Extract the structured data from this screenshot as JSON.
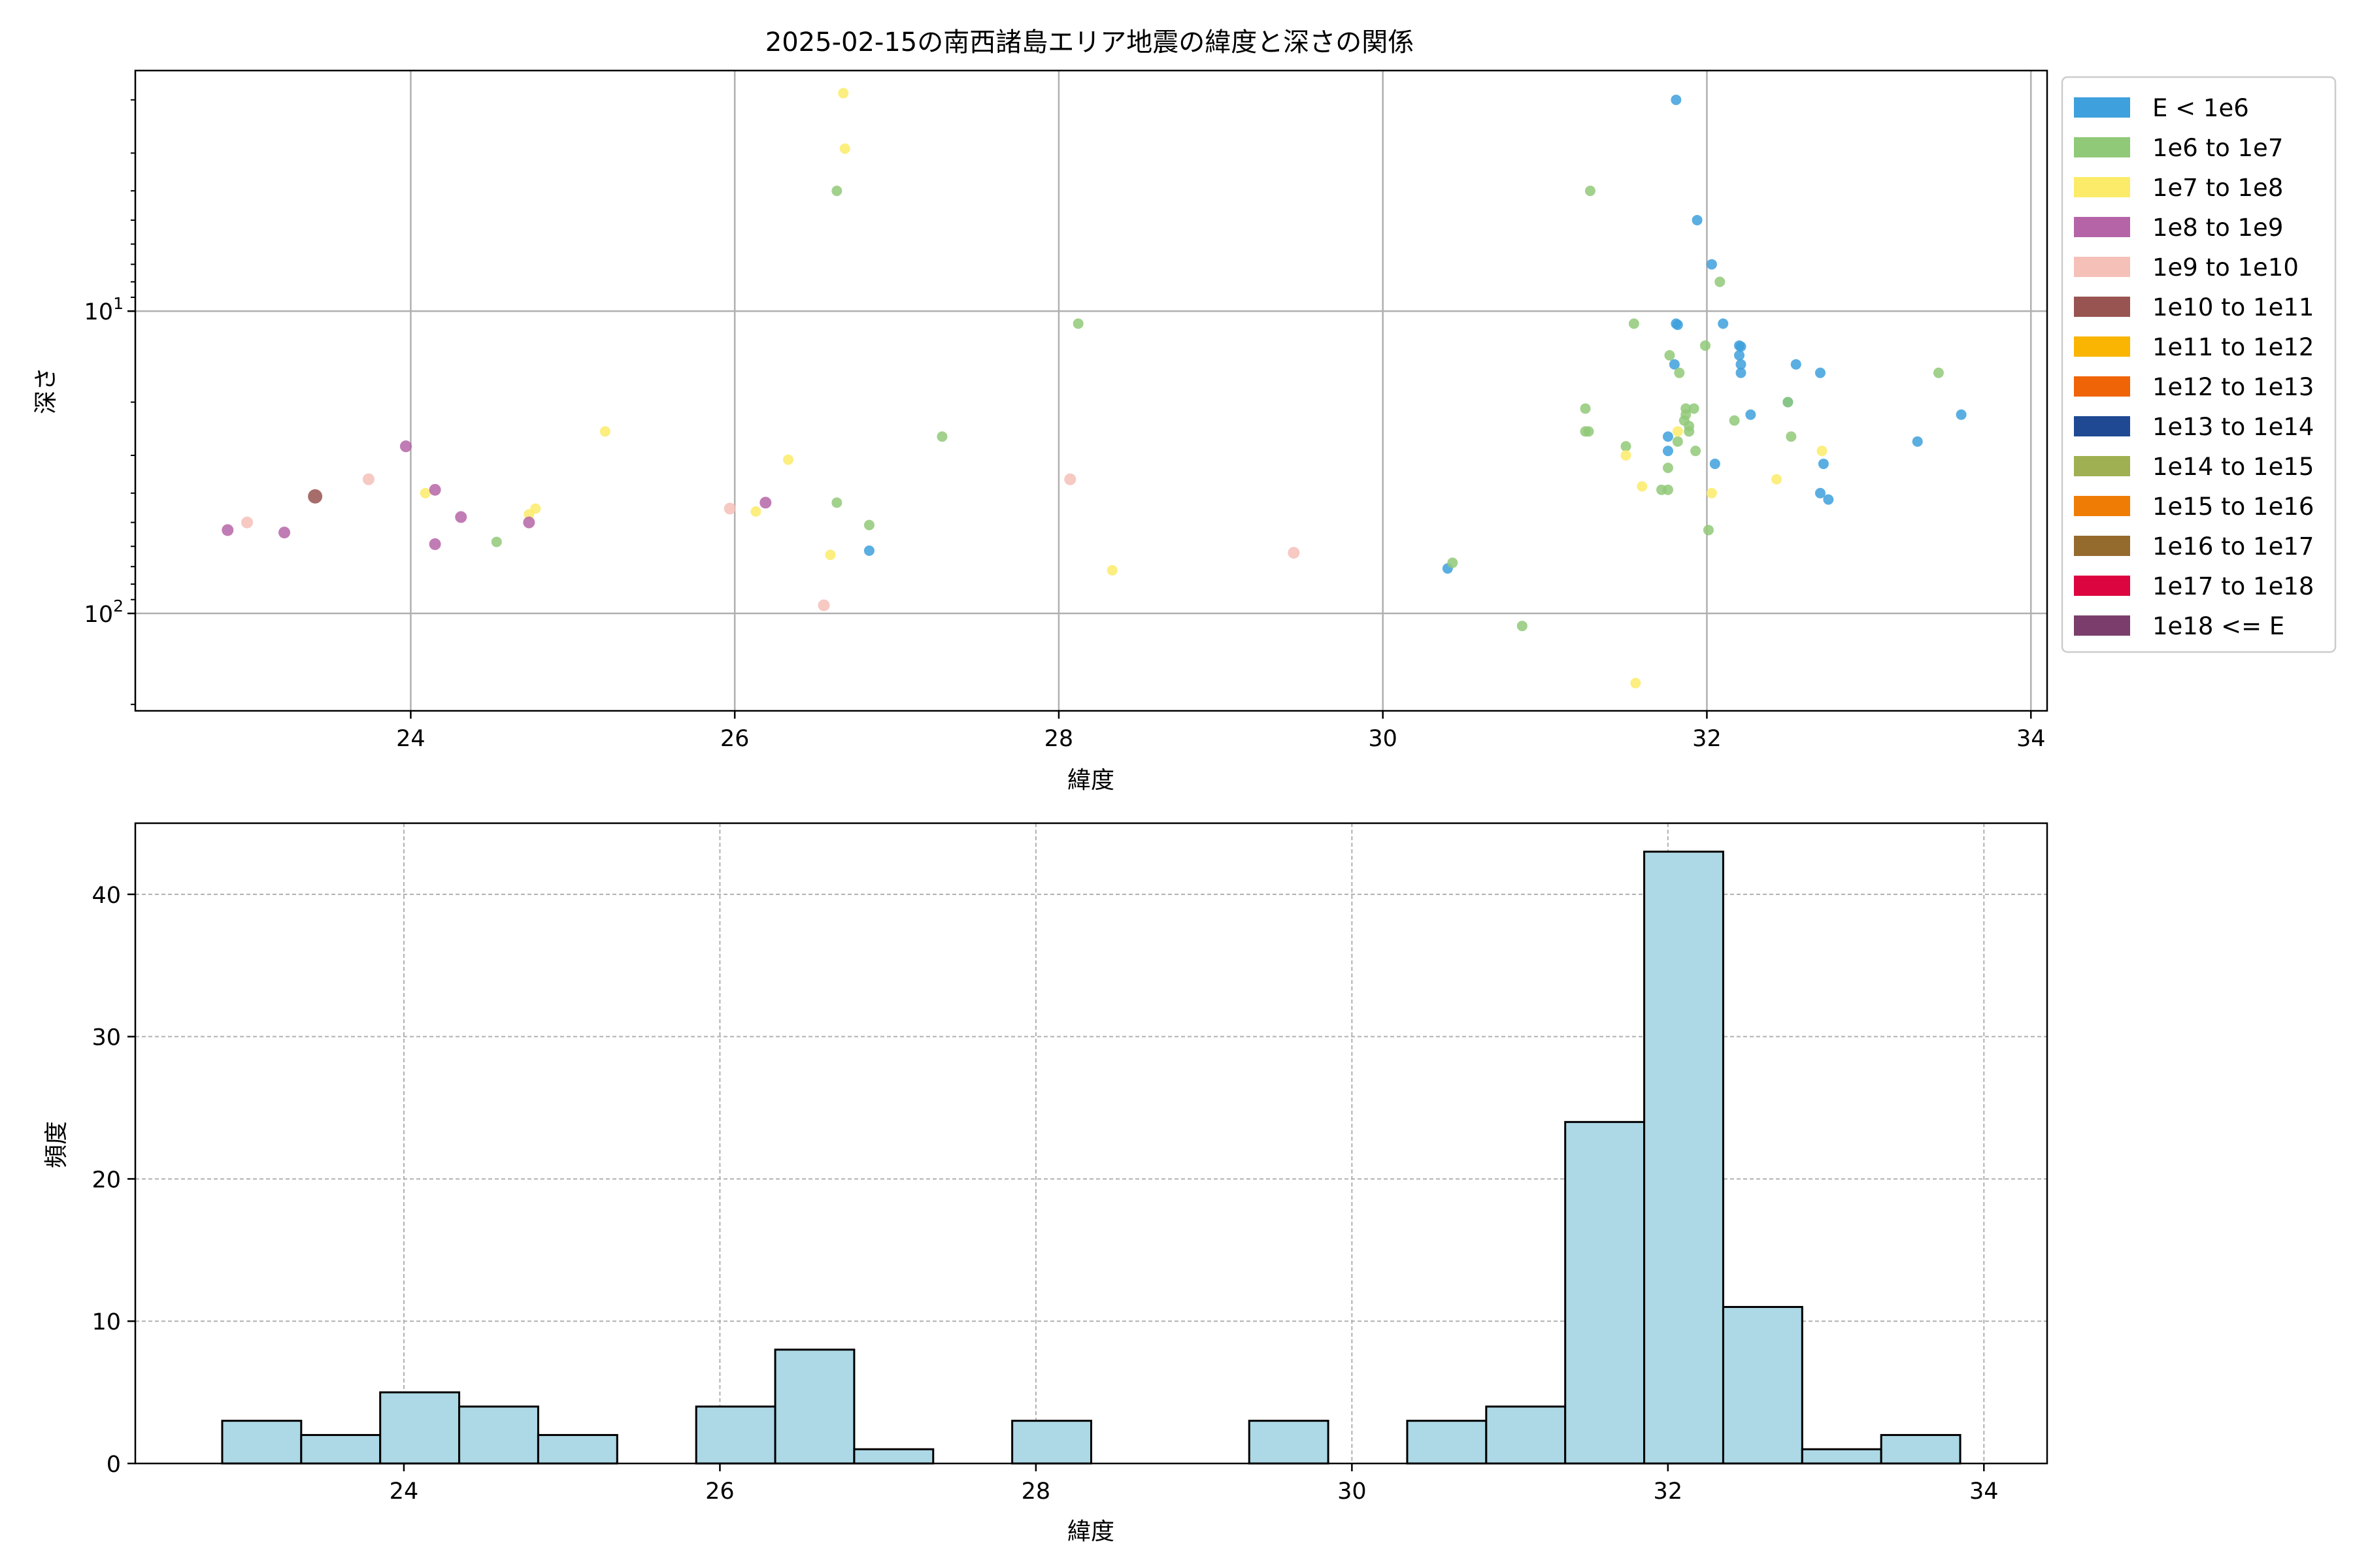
{
  "figure_title": "2025-02-15の南西諸島エリア地震の緯度と深さの関係",
  "chart_data": [
    {
      "type": "scatter",
      "title": "2025-02-15の南西諸島エリア地震の緯度と深さの関係",
      "xlabel": "緯度",
      "ylabel": "深さ",
      "xlim": [
        22.3,
        34.1
      ],
      "ylim": [
        210,
        1.6
      ],
      "y_scale": "log",
      "y_inverted": true,
      "grid": true,
      "x_ticks": [
        24,
        26,
        28,
        30,
        32,
        34
      ],
      "y_ticks": [
        {
          "value": 10,
          "base": "10",
          "exp": "1"
        },
        {
          "value": 100,
          "base": "10",
          "exp": "2"
        }
      ],
      "legend": {
        "position": "outside-right",
        "entries": [
          {
            "label": "E < 1e6",
            "color": "#3ea0dc"
          },
          {
            "label": "1e6 to 1e7",
            "color": "#90c978"
          },
          {
            "label": "1e7 to 1e8",
            "color": "#fceb68"
          },
          {
            "label": "1e8 to 1e9",
            "color": "#b565a7"
          },
          {
            "label": "1e9 to 1e10",
            "color": "#f5c0b8"
          },
          {
            "label": "1e10 to 1e11",
            "color": "#985450"
          },
          {
            "label": "1e11 to 1e12",
            "color": "#f9b502"
          },
          {
            "label": "1e12 to 1e13",
            "color": "#ef6406"
          },
          {
            "label": "1e13 to 1e14",
            "color": "#1f4a93"
          },
          {
            "label": "1e14 to 1e15",
            "color": "#9eb051"
          },
          {
            "label": "1e15 to 1e16",
            "color": "#ef7d05"
          },
          {
            "label": "1e16 to 1e17",
            "color": "#956a2d"
          },
          {
            "label": "1e17 to 1e18",
            "color": "#dd0540"
          },
          {
            "label": "1e18 <= E",
            "color": "#7b3e6c"
          }
        ]
      },
      "series": [
        {
          "class": 0,
          "points": [
            [
              31.81,
              2.0
            ],
            [
              31.94,
              5.0
            ],
            [
              32.03,
              7.0
            ],
            [
              32.1,
              11.0
            ],
            [
              31.81,
              11.0
            ],
            [
              31.82,
              11.1
            ],
            [
              32.2,
              13.0
            ],
            [
              32.21,
              13.1
            ],
            [
              32.2,
              14.0
            ],
            [
              32.21,
              15.0
            ],
            [
              32.21,
              16.0
            ],
            [
              31.8,
              15.0
            ],
            [
              32.55,
              15.0
            ],
            [
              32.7,
              16.0
            ],
            [
              32.27,
              22.0
            ],
            [
              32.5,
              20.0
            ],
            [
              31.76,
              26.0
            ],
            [
              31.76,
              29.0
            ],
            [
              32.05,
              32.0
            ],
            [
              32.72,
              32.0
            ],
            [
              32.7,
              40.0
            ],
            [
              32.75,
              42.0
            ],
            [
              26.83,
              62.0
            ],
            [
              30.4,
              71.0
            ],
            [
              33.3,
              27.0
            ],
            [
              33.57,
              22.0
            ]
          ]
        },
        {
          "class": 1,
          "points": [
            [
              26.63,
              4.0
            ],
            [
              31.28,
              4.0
            ],
            [
              32.08,
              8.0
            ],
            [
              28.12,
              11.0
            ],
            [
              31.55,
              11.0
            ],
            [
              31.99,
              13.0
            ],
            [
              31.77,
              14.0
            ],
            [
              31.83,
              16.0
            ],
            [
              31.87,
              21.0
            ],
            [
              31.25,
              21.0
            ],
            [
              31.92,
              21.0
            ],
            [
              31.87,
              22.0
            ],
            [
              31.86,
              23.0
            ],
            [
              32.17,
              23.0
            ],
            [
              31.89,
              24.0
            ],
            [
              31.89,
              25.0
            ],
            [
              31.25,
              25.0
            ],
            [
              31.27,
              25.0
            ],
            [
              31.82,
              27.0
            ],
            [
              31.5,
              28.0
            ],
            [
              31.93,
              29.0
            ],
            [
              31.76,
              33.0
            ],
            [
              31.72,
              39.0
            ],
            [
              31.76,
              39.0
            ],
            [
              26.63,
              43.0
            ],
            [
              26.83,
              51.0
            ],
            [
              24.53,
              58.0
            ],
            [
              32.01,
              53.0
            ],
            [
              30.43,
              68.0
            ],
            [
              32.5,
              20.0
            ],
            [
              32.52,
              26.0
            ],
            [
              33.43,
              16.0
            ],
            [
              30.86,
              110.0
            ],
            [
              27.28,
              26.0
            ]
          ]
        },
        {
          "class": 2,
          "points": [
            [
              26.67,
              1.9
            ],
            [
              26.68,
              2.9
            ],
            [
              25.2,
              25.0
            ],
            [
              26.33,
              31.0
            ],
            [
              24.09,
              40.0
            ],
            [
              24.77,
              45.0
            ],
            [
              24.73,
              47.0
            ],
            [
              26.13,
              46.0
            ],
            [
              26.59,
              64.0
            ],
            [
              28.33,
              72.0
            ],
            [
              31.6,
              38.0
            ],
            [
              32.03,
              40.0
            ],
            [
              32.43,
              36.0
            ],
            [
              31.56,
              170.0
            ],
            [
              31.5,
              30.0
            ],
            [
              32.71,
              29.0
            ],
            [
              31.82,
              25.0
            ]
          ]
        },
        {
          "class": 3,
          "points": [
            [
              23.97,
              28.0
            ],
            [
              24.15,
              39.0
            ],
            [
              24.31,
              48.0
            ],
            [
              24.73,
              50.0
            ],
            [
              22.87,
              53.0
            ],
            [
              23.22,
              54.0
            ],
            [
              24.15,
              59.0
            ],
            [
              26.19,
              43.0
            ]
          ]
        },
        {
          "class": 4,
          "points": [
            [
              22.99,
              50.0
            ],
            [
              23.74,
              36.0
            ],
            [
              25.97,
              45.0
            ],
            [
              28.07,
              36.0
            ],
            [
              26.55,
              94.0
            ],
            [
              29.45,
              63.0
            ]
          ]
        },
        {
          "class": 5,
          "points": [
            [
              23.41,
              41.0
            ]
          ]
        }
      ]
    },
    {
      "type": "histogram",
      "xlabel": "緯度",
      "ylabel": "頻度",
      "xlim": [
        22.3,
        34.4
      ],
      "ylim": [
        0,
        45
      ],
      "grid": true,
      "grid_style": "dashed",
      "bar_color": "#add8e6",
      "edge_color": "#000000",
      "x_ticks": [
        24,
        26,
        28,
        30,
        32,
        34
      ],
      "y_ticks": [
        0,
        10,
        20,
        30,
        40
      ],
      "bin_start": 22.85,
      "bin_width": 0.5,
      "counts": [
        3,
        2,
        5,
        4,
        2,
        0,
        4,
        8,
        1,
        0,
        3,
        0,
        0,
        3,
        0,
        3,
        4,
        24,
        43,
        11,
        1,
        2
      ]
    }
  ]
}
